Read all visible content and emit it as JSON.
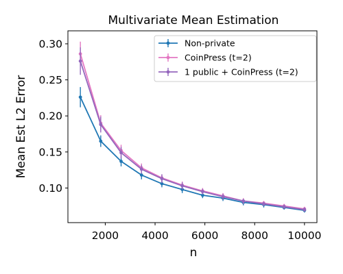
{
  "chart_data": {
    "type": "line",
    "title": "Multivariate Mean Estimation",
    "xlabel": "n",
    "ylabel": "Mean Est L2 Error",
    "xlim": [
      500,
      10500
    ],
    "ylim": [
      0.052,
      0.318
    ],
    "xticks": [
      2000,
      4000,
      6000,
      8000,
      10000
    ],
    "xtick_labels": [
      "2000",
      "4000",
      "6000",
      "8000",
      "10000"
    ],
    "yticks": [
      0.1,
      0.15,
      0.2,
      0.25,
      0.3
    ],
    "ytick_labels": [
      "0.10",
      "0.15",
      "0.20",
      "0.25",
      "0.30"
    ],
    "grid": false,
    "legend_position": "top-right",
    "x": [
      1000,
      1818,
      2636,
      3455,
      4273,
      5091,
      5909,
      6727,
      7545,
      8364,
      9182,
      10000
    ],
    "series": [
      {
        "name": "Non-private",
        "color": "#1f77b4",
        "values": [
          0.226,
          0.165,
          0.137,
          0.118,
          0.106,
          0.098,
          0.09,
          0.086,
          0.08,
          0.077,
          0.073,
          0.069
        ],
        "errors": [
          0.014,
          0.008,
          0.007,
          0.006,
          0.005,
          0.005,
          0.004,
          0.004,
          0.004,
          0.004,
          0.003,
          0.003
        ]
      },
      {
        "name": "CoinPress (t=2)",
        "color": "#e377c2",
        "values": [
          0.286,
          0.19,
          0.152,
          0.128,
          0.114,
          0.104,
          0.096,
          0.089,
          0.082,
          0.079,
          0.075,
          0.071
        ],
        "errors": [
          0.017,
          0.011,
          0.008,
          0.006,
          0.005,
          0.005,
          0.004,
          0.004,
          0.004,
          0.003,
          0.003,
          0.003
        ]
      },
      {
        "name": "1 public + CoinPress (t=2)",
        "color": "#9467bd",
        "values": [
          0.276,
          0.188,
          0.149,
          0.126,
          0.113,
          0.103,
          0.095,
          0.088,
          0.082,
          0.078,
          0.074,
          0.07
        ],
        "errors": [
          0.019,
          0.011,
          0.008,
          0.006,
          0.006,
          0.005,
          0.004,
          0.004,
          0.003,
          0.003,
          0.003,
          0.003
        ]
      }
    ]
  }
}
